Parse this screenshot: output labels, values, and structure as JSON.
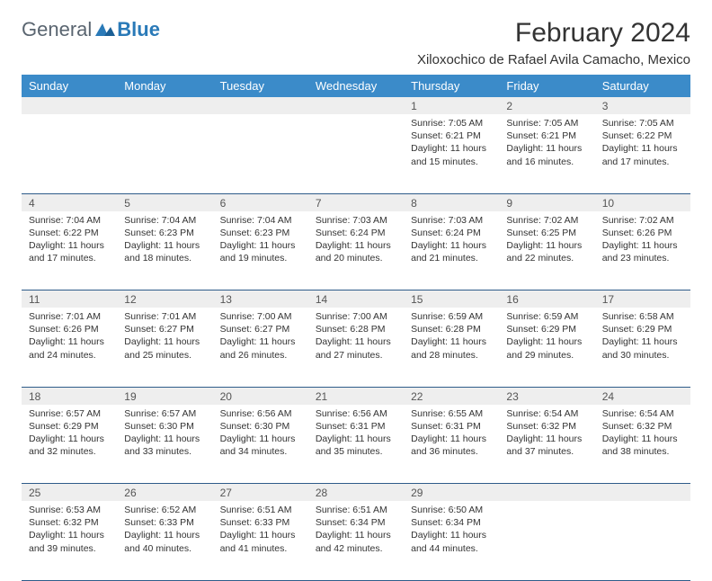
{
  "logo": {
    "part1": "General",
    "part2": "Blue"
  },
  "title": "February 2024",
  "location": "Xiloxochico de Rafael Avila Camacho, Mexico",
  "colors": {
    "header_bg": "#3b8bc9",
    "header_text": "#ffffff",
    "daynum_bg": "#eeeeee",
    "border": "#2e5c8a",
    "logo_gray": "#5a6570",
    "logo_blue": "#2a7ab8"
  },
  "typography": {
    "title_fontsize": 30,
    "location_fontsize": 15,
    "dayheader_fontsize": 13,
    "daynum_fontsize": 12,
    "cell_fontsize": 10.5
  },
  "day_headers": [
    "Sunday",
    "Monday",
    "Tuesday",
    "Wednesday",
    "Thursday",
    "Friday",
    "Saturday"
  ],
  "weeks": [
    [
      null,
      null,
      null,
      null,
      {
        "n": "1",
        "sunrise": "7:05 AM",
        "sunset": "6:21 PM",
        "dl": "11 hours and 15 minutes."
      },
      {
        "n": "2",
        "sunrise": "7:05 AM",
        "sunset": "6:21 PM",
        "dl": "11 hours and 16 minutes."
      },
      {
        "n": "3",
        "sunrise": "7:05 AM",
        "sunset": "6:22 PM",
        "dl": "11 hours and 17 minutes."
      }
    ],
    [
      {
        "n": "4",
        "sunrise": "7:04 AM",
        "sunset": "6:22 PM",
        "dl": "11 hours and 17 minutes."
      },
      {
        "n": "5",
        "sunrise": "7:04 AM",
        "sunset": "6:23 PM",
        "dl": "11 hours and 18 minutes."
      },
      {
        "n": "6",
        "sunrise": "7:04 AM",
        "sunset": "6:23 PM",
        "dl": "11 hours and 19 minutes."
      },
      {
        "n": "7",
        "sunrise": "7:03 AM",
        "sunset": "6:24 PM",
        "dl": "11 hours and 20 minutes."
      },
      {
        "n": "8",
        "sunrise": "7:03 AM",
        "sunset": "6:24 PM",
        "dl": "11 hours and 21 minutes."
      },
      {
        "n": "9",
        "sunrise": "7:02 AM",
        "sunset": "6:25 PM",
        "dl": "11 hours and 22 minutes."
      },
      {
        "n": "10",
        "sunrise": "7:02 AM",
        "sunset": "6:26 PM",
        "dl": "11 hours and 23 minutes."
      }
    ],
    [
      {
        "n": "11",
        "sunrise": "7:01 AM",
        "sunset": "6:26 PM",
        "dl": "11 hours and 24 minutes."
      },
      {
        "n": "12",
        "sunrise": "7:01 AM",
        "sunset": "6:27 PM",
        "dl": "11 hours and 25 minutes."
      },
      {
        "n": "13",
        "sunrise": "7:00 AM",
        "sunset": "6:27 PM",
        "dl": "11 hours and 26 minutes."
      },
      {
        "n": "14",
        "sunrise": "7:00 AM",
        "sunset": "6:28 PM",
        "dl": "11 hours and 27 minutes."
      },
      {
        "n": "15",
        "sunrise": "6:59 AM",
        "sunset": "6:28 PM",
        "dl": "11 hours and 28 minutes."
      },
      {
        "n": "16",
        "sunrise": "6:59 AM",
        "sunset": "6:29 PM",
        "dl": "11 hours and 29 minutes."
      },
      {
        "n": "17",
        "sunrise": "6:58 AM",
        "sunset": "6:29 PM",
        "dl": "11 hours and 30 minutes."
      }
    ],
    [
      {
        "n": "18",
        "sunrise": "6:57 AM",
        "sunset": "6:29 PM",
        "dl": "11 hours and 32 minutes."
      },
      {
        "n": "19",
        "sunrise": "6:57 AM",
        "sunset": "6:30 PM",
        "dl": "11 hours and 33 minutes."
      },
      {
        "n": "20",
        "sunrise": "6:56 AM",
        "sunset": "6:30 PM",
        "dl": "11 hours and 34 minutes."
      },
      {
        "n": "21",
        "sunrise": "6:56 AM",
        "sunset": "6:31 PM",
        "dl": "11 hours and 35 minutes."
      },
      {
        "n": "22",
        "sunrise": "6:55 AM",
        "sunset": "6:31 PM",
        "dl": "11 hours and 36 minutes."
      },
      {
        "n": "23",
        "sunrise": "6:54 AM",
        "sunset": "6:32 PM",
        "dl": "11 hours and 37 minutes."
      },
      {
        "n": "24",
        "sunrise": "6:54 AM",
        "sunset": "6:32 PM",
        "dl": "11 hours and 38 minutes."
      }
    ],
    [
      {
        "n": "25",
        "sunrise": "6:53 AM",
        "sunset": "6:32 PM",
        "dl": "11 hours and 39 minutes."
      },
      {
        "n": "26",
        "sunrise": "6:52 AM",
        "sunset": "6:33 PM",
        "dl": "11 hours and 40 minutes."
      },
      {
        "n": "27",
        "sunrise": "6:51 AM",
        "sunset": "6:33 PM",
        "dl": "11 hours and 41 minutes."
      },
      {
        "n": "28",
        "sunrise": "6:51 AM",
        "sunset": "6:34 PM",
        "dl": "11 hours and 42 minutes."
      },
      {
        "n": "29",
        "sunrise": "6:50 AM",
        "sunset": "6:34 PM",
        "dl": "11 hours and 44 minutes."
      },
      null,
      null
    ]
  ],
  "labels": {
    "sunrise": "Sunrise: ",
    "sunset": "Sunset: ",
    "daylight": "Daylight: "
  }
}
